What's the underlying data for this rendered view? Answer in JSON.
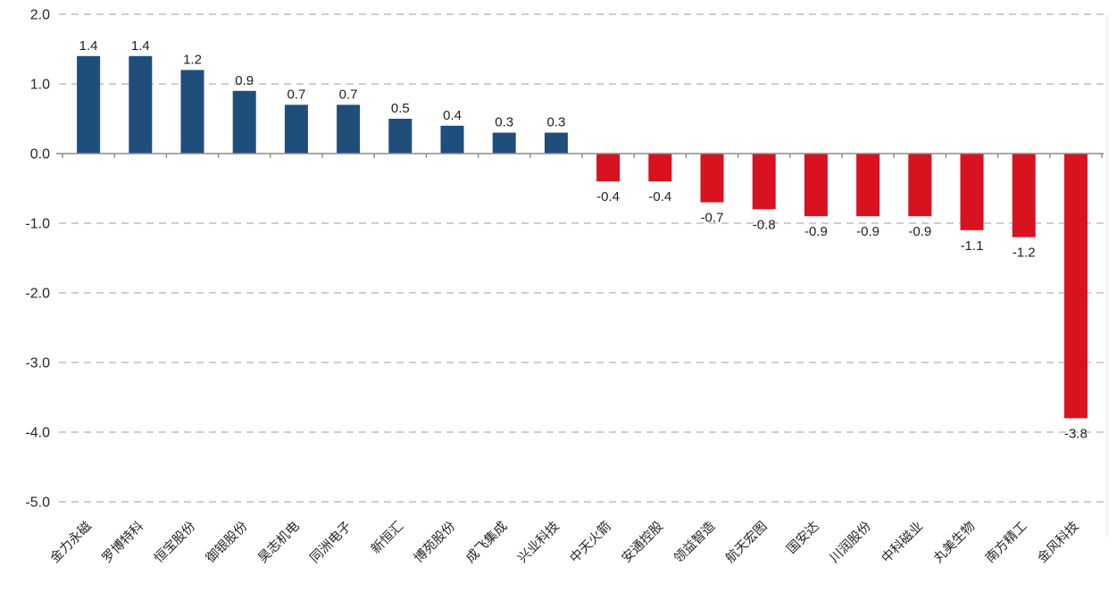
{
  "chart_data": {
    "type": "bar",
    "title": "",
    "xlabel": "",
    "ylabel": "",
    "categories": [
      "金力永磁",
      "罗博特科",
      "恒宝股份",
      "御银股份",
      "昊志机电",
      "同洲电子",
      "新恒汇",
      "博苑股份",
      "成飞集成",
      "兴业科技",
      "中天火箭",
      "安通控股",
      "领益智造",
      "航天宏图",
      "国安达",
      "川润股份",
      "中科磁业",
      "丸美生物",
      "南方精工",
      "金风科技"
    ],
    "values": [
      1.4,
      1.4,
      1.2,
      0.9,
      0.7,
      0.7,
      0.5,
      0.4,
      0.3,
      0.3,
      -0.4,
      -0.4,
      -0.7,
      -0.8,
      -0.9,
      -0.9,
      -0.9,
      -1.1,
      -1.2,
      -3.8
    ],
    "value_labels": [
      "1.4",
      "1.4",
      "1.2",
      "0.9",
      "0.7",
      "0.7",
      "0.5",
      "0.4",
      "0.3",
      "0.3",
      "-0.4",
      "-0.4",
      "-0.7",
      "-0.8",
      "-0.9",
      "-0.9",
      "-0.9",
      "-1.1",
      "-1.2",
      "-3.8"
    ],
    "ylim": [
      -5.0,
      2.0
    ],
    "y_ticks": [
      2.0,
      1.0,
      0.0,
      -1.0,
      -2.0,
      -3.0,
      -4.0,
      -5.0
    ],
    "y_tick_labels": [
      "2.0",
      "1.0",
      "0.0",
      "-1.0",
      "-2.0",
      "-3.0",
      "-4.0",
      "-5.0"
    ],
    "grid": "horizontal-dashed",
    "legend": "none",
    "bar_colors": {
      "positive": "#1F4E7B",
      "negative": "#D9121F"
    },
    "colors": {
      "gridline": "#C7C7C7",
      "axis_line": "#8C8C8C",
      "tick_label": "#262626",
      "value_label": "#1F1F1F",
      "category_label": "#262626",
      "plot_border": "#E4E4E4",
      "background": "#FFFFFF"
    }
  }
}
